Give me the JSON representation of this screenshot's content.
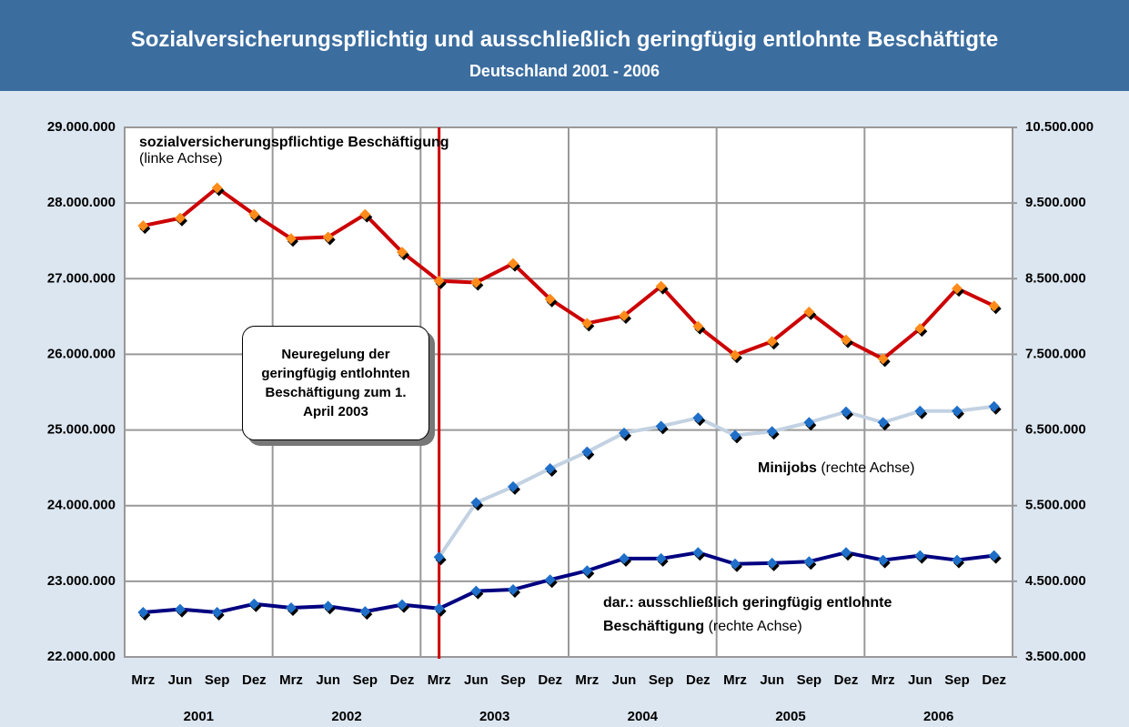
{
  "chart_data": {
    "type": "line",
    "title": "Sozialversicherungspflichtig und ausschließlich geringfügig entlohnte Beschäftigte",
    "subtitle": "Deutschland 2001 - 2006",
    "categories": [
      "Mrz",
      "Jun",
      "Sep",
      "Dez",
      "Mrz",
      "Jun",
      "Sep",
      "Dez",
      "Mrz",
      "Jun",
      "Sep",
      "Dez",
      "Mrz",
      "Jun",
      "Sep",
      "Dez",
      "Mrz",
      "Jun",
      "Sep",
      "Dez",
      "Mrz",
      "Jun",
      "Sep",
      "Dez"
    ],
    "years": [
      "2001",
      "2002",
      "2003",
      "2004",
      "2005",
      "2006"
    ],
    "series": [
      {
        "name": "sozialversicherungspflichtige Beschäftigung",
        "note": "(linke Achse)",
        "color": "#cc0000",
        "marker_color": "#ff8c1a",
        "axis": "y",
        "values": [
          27700000,
          27800000,
          28200000,
          27850000,
          27530000,
          27550000,
          27850000,
          27350000,
          26970000,
          26950000,
          27200000,
          26730000,
          26410000,
          26510000,
          26900000,
          26370000,
          25990000,
          26170000,
          26560000,
          26190000,
          25940000,
          26340000,
          26870000,
          26640000
        ]
      },
      {
        "name": "Minijobs",
        "note": "(rechte Achse)",
        "color": "#c3d2e2",
        "marker_color": "#1f6fc8",
        "axis": "y2",
        "values": [
          null,
          null,
          null,
          null,
          null,
          null,
          null,
          null,
          4820000,
          5540000,
          5750000,
          5990000,
          6210000,
          6460000,
          6550000,
          6660000,
          6430000,
          6480000,
          6600000,
          6740000,
          6600000,
          6750000,
          6750000,
          6810000
        ]
      },
      {
        "name": "dar.: ausschließlich geringfügig entlohnte Beschäftigung",
        "note": "(rechte Achse)",
        "color": "#000080",
        "marker_color": "#1f6fc8",
        "axis": "y2",
        "values": [
          4090000,
          4130000,
          4090000,
          4200000,
          4150000,
          4170000,
          4100000,
          4190000,
          4140000,
          4370000,
          4390000,
          4520000,
          4640000,
          4800000,
          4800000,
          4880000,
          4730000,
          4740000,
          4760000,
          4880000,
          4780000,
          4840000,
          4780000,
          4840000
        ]
      }
    ],
    "annotation": "Neuregelung der geringfügig entlohnten Beschäftigung zum 1. April 2003",
    "ylim": [
      22000000,
      29000000
    ],
    "yticks": [
      {
        "value": 22000000,
        "label": "22.000.000"
      },
      {
        "value": 23000000,
        "label": "23.000.000"
      },
      {
        "value": 24000000,
        "label": "24.000.000"
      },
      {
        "value": 25000000,
        "label": "25.000.000"
      },
      {
        "value": 26000000,
        "label": "26.000.000"
      },
      {
        "value": 27000000,
        "label": "27.000.000"
      },
      {
        "value": 28000000,
        "label": "28.000.000"
      },
      {
        "value": 29000000,
        "label": "29.000.000"
      }
    ],
    "y2lim": [
      3500000,
      10500000
    ],
    "y2ticks": [
      {
        "value": 3500000,
        "label": "3.500.000"
      },
      {
        "value": 4500000,
        "label": "4.500.000"
      },
      {
        "value": 5500000,
        "label": "5.500.000"
      },
      {
        "value": 6500000,
        "label": "6.500.000"
      },
      {
        "value": 7500000,
        "label": "7.500.000"
      },
      {
        "value": 8500000,
        "label": "8.500.000"
      },
      {
        "value": 9500000,
        "label": "9.500.000"
      },
      {
        "value": 10500000,
        "label": "10.500.000"
      }
    ],
    "grid": true
  }
}
